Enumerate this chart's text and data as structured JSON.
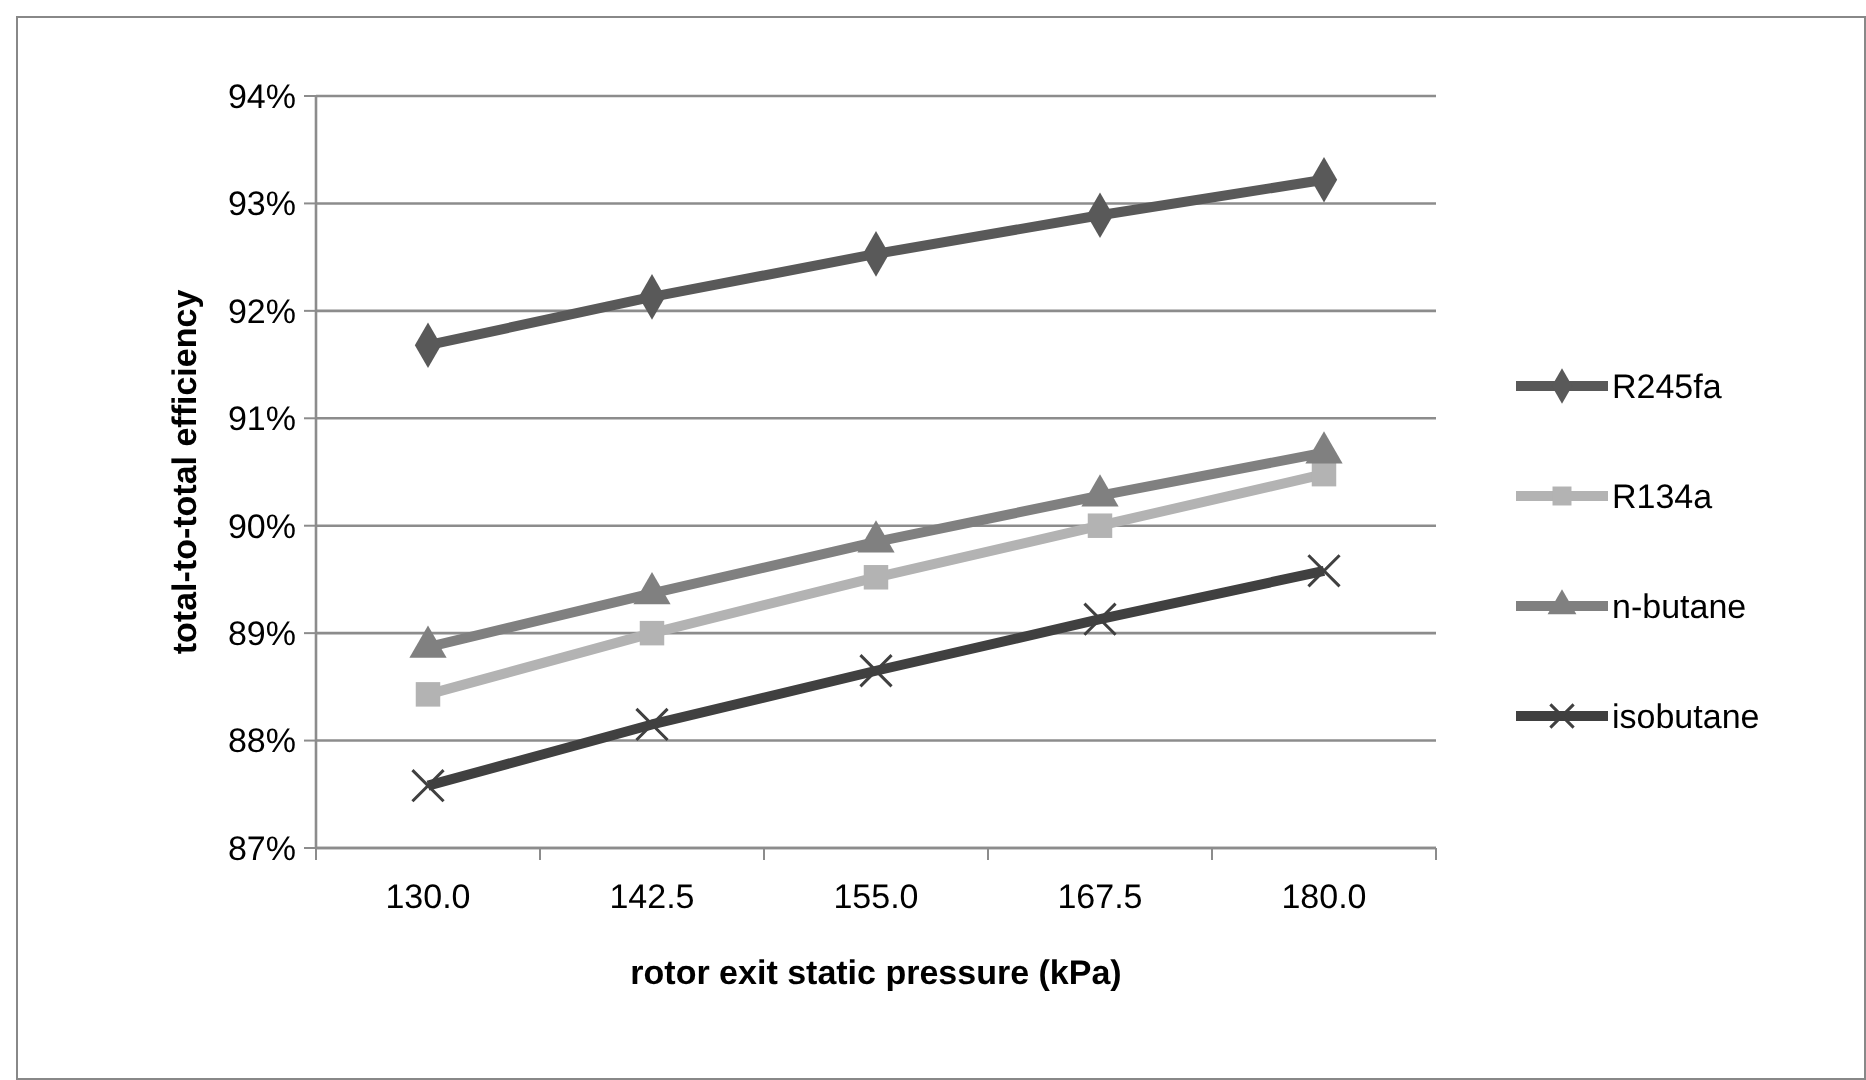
{
  "chart_data": {
    "type": "line",
    "xlabel": "rotor exit static pressure (kPa)",
    "ylabel": "total-to-total efficiency",
    "categories": [
      "130.0",
      "142.5",
      "155.0",
      "167.5",
      "180.0"
    ],
    "series": [
      {
        "name": "R245fa",
        "color": "#595959",
        "marker": "diamond",
        "values": [
          91.68,
          92.13,
          92.53,
          92.89,
          93.22
        ]
      },
      {
        "name": "R134a",
        "color": "#b3b3b3",
        "marker": "square",
        "values": [
          88.43,
          89.0,
          89.52,
          90.0,
          90.48
        ]
      },
      {
        "name": "n-butane",
        "color": "#808080",
        "marker": "triangle",
        "values": [
          88.87,
          89.37,
          89.85,
          90.28,
          90.68
        ]
      },
      {
        "name": "isobutane",
        "color": "#404040",
        "marker": "cross",
        "values": [
          87.58,
          88.15,
          88.65,
          89.13,
          89.58
        ]
      }
    ],
    "ylim": [
      87,
      94
    ],
    "yticks": [
      {
        "value": 87,
        "label": "87%"
      },
      {
        "value": 88,
        "label": "88%"
      },
      {
        "value": 89,
        "label": "89%"
      },
      {
        "value": 90,
        "label": "90%"
      },
      {
        "value": 91,
        "label": "91%"
      },
      {
        "value": 92,
        "label": "92%"
      },
      {
        "value": 93,
        "label": "93%"
      },
      {
        "value": 94,
        "label": "94%"
      }
    ],
    "grid": "y",
    "legend": "right"
  }
}
